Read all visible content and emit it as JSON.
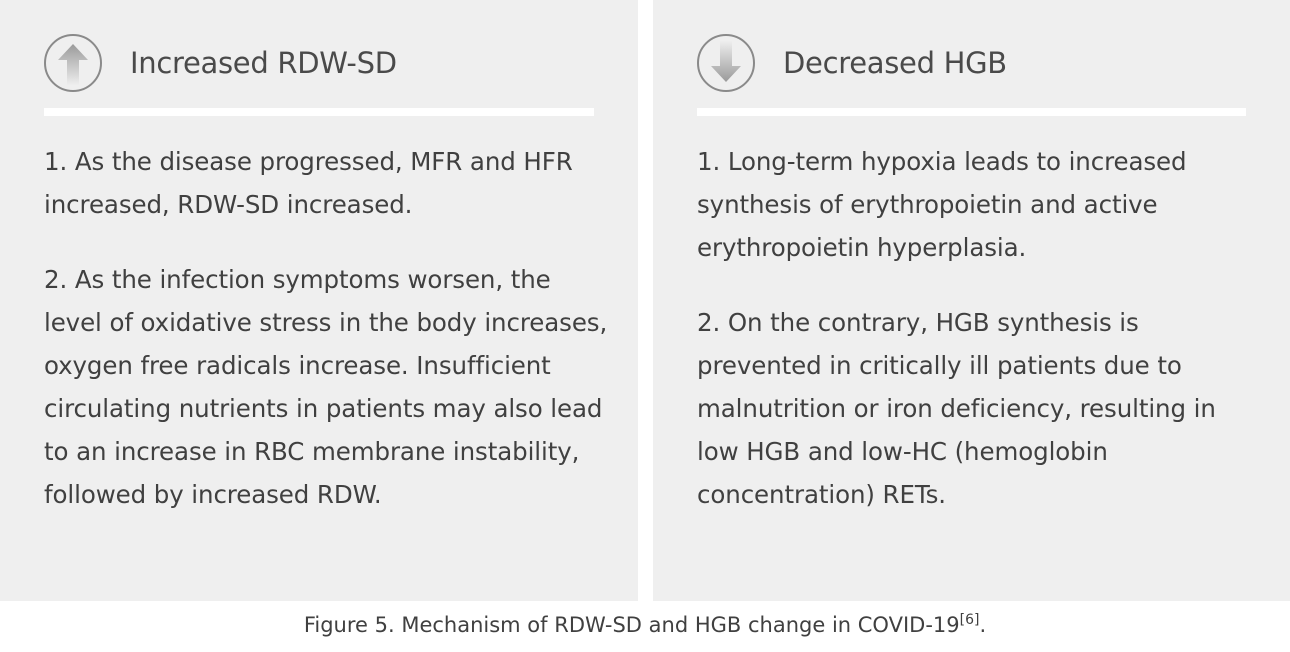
{
  "panels": [
    {
      "icon": "arrow-up-icon",
      "title": "Increased RDW-SD",
      "points": [
        "1. As the disease progressed, MFR and HFR increased, RDW-SD increased.",
        "2. As the infection symptoms worsen, the level of oxidative stress in the body increases, oxygen free radicals increase. Insufficient circulating nutrients in patients may also lead to an increase in RBC membrane instability, followed by increased RDW."
      ]
    },
    {
      "icon": "arrow-down-icon",
      "title": "Decreased HGB",
      "points": [
        "1. Long-term hypoxia leads to increased synthesis of erythropoietin and active erythropoietin hyperplasia.",
        "2. On the contrary, HGB synthesis is prevented in critically ill patients due to malnutrition or iron deficiency, resulting in low HGB and low-HC (hemoglobin concentration) RETs."
      ]
    }
  ],
  "caption": {
    "text": "Figure 5. Mechanism of RDW-SD and HGB change in COVID-19",
    "ref": "[6]",
    "end": "."
  }
}
